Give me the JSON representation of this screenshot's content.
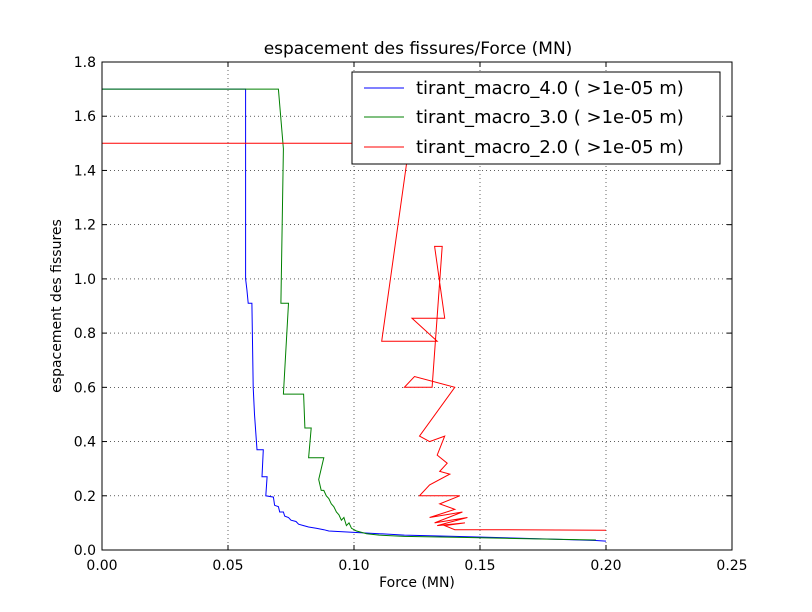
{
  "chart_data": {
    "type": "line",
    "title": "espacement des fissures/Force (MN)",
    "xlabel": "Force (MN)",
    "ylabel": "espacement des fissures",
    "xlim": [
      0.0,
      0.25
    ],
    "ylim": [
      0.0,
      1.8
    ],
    "xticks": [
      "0.00",
      "0.05",
      "0.10",
      "0.15",
      "0.20",
      "0.25"
    ],
    "yticks": [
      "0.0",
      "0.2",
      "0.4",
      "0.6",
      "0.8",
      "1.0",
      "1.2",
      "1.4",
      "1.6",
      "1.8"
    ],
    "grid": true,
    "legend_position": "top-right",
    "series": [
      {
        "name": "tirant_macro_4.0 ( >1e-05 m)",
        "color": "#0000ff",
        "points": [
          [
            0.0,
            1.7
          ],
          [
            0.057,
            1.7
          ],
          [
            0.057,
            1.0
          ],
          [
            0.0575,
            0.96
          ],
          [
            0.058,
            0.91
          ],
          [
            0.0595,
            0.91
          ],
          [
            0.06,
            0.6
          ],
          [
            0.0605,
            0.5
          ],
          [
            0.0615,
            0.37
          ],
          [
            0.064,
            0.37
          ],
          [
            0.0635,
            0.27
          ],
          [
            0.0655,
            0.27
          ],
          [
            0.065,
            0.2
          ],
          [
            0.068,
            0.195
          ],
          [
            0.0685,
            0.165
          ],
          [
            0.07,
            0.16
          ],
          [
            0.0705,
            0.14
          ],
          [
            0.072,
            0.14
          ],
          [
            0.0725,
            0.125
          ],
          [
            0.074,
            0.12
          ],
          [
            0.075,
            0.11
          ],
          [
            0.077,
            0.105
          ],
          [
            0.078,
            0.095
          ],
          [
            0.08,
            0.09
          ],
          [
            0.082,
            0.085
          ],
          [
            0.085,
            0.08
          ],
          [
            0.088,
            0.075
          ],
          [
            0.09,
            0.07
          ],
          [
            0.1,
            0.065
          ],
          [
            0.11,
            0.06
          ],
          [
            0.12,
            0.055
          ],
          [
            0.14,
            0.05
          ],
          [
            0.16,
            0.045
          ],
          [
            0.18,
            0.04
          ],
          [
            0.196,
            0.035
          ],
          [
            0.2,
            0.033
          ]
        ]
      },
      {
        "name": "tirant_macro_3.0 ( >1e-05 m)",
        "color": "#008000",
        "points": [
          [
            0.0,
            1.7
          ],
          [
            0.07,
            1.7
          ],
          [
            0.072,
            1.48
          ],
          [
            0.071,
            0.91
          ],
          [
            0.074,
            0.91
          ],
          [
            0.072,
            0.575
          ],
          [
            0.08,
            0.575
          ],
          [
            0.0805,
            0.45
          ],
          [
            0.083,
            0.45
          ],
          [
            0.082,
            0.34
          ],
          [
            0.088,
            0.34
          ],
          [
            0.086,
            0.26
          ],
          [
            0.087,
            0.22
          ],
          [
            0.088,
            0.22
          ],
          [
            0.089,
            0.2
          ],
          [
            0.09,
            0.19
          ],
          [
            0.091,
            0.17
          ],
          [
            0.092,
            0.16
          ],
          [
            0.093,
            0.14
          ],
          [
            0.094,
            0.13
          ],
          [
            0.095,
            0.11
          ],
          [
            0.096,
            0.12
          ],
          [
            0.097,
            0.09
          ],
          [
            0.098,
            0.1
          ],
          [
            0.099,
            0.08
          ],
          [
            0.101,
            0.07
          ],
          [
            0.103,
            0.065
          ],
          [
            0.105,
            0.06
          ],
          [
            0.11,
            0.055
          ],
          [
            0.12,
            0.05
          ],
          [
            0.14,
            0.047
          ],
          [
            0.16,
            0.043
          ],
          [
            0.18,
            0.04
          ],
          [
            0.196,
            0.037
          ]
        ]
      },
      {
        "name": "tirant_macro_2.0 ( >1e-05 m)",
        "color": "#ff0000",
        "points": [
          [
            0.0,
            1.5
          ],
          [
            0.122,
            1.5
          ],
          [
            0.111,
            0.77
          ],
          [
            0.133,
            0.77
          ],
          [
            0.123,
            0.855
          ],
          [
            0.136,
            0.855
          ],
          [
            0.132,
            1.12
          ],
          [
            0.135,
            1.12
          ],
          [
            0.131,
            0.6
          ],
          [
            0.12,
            0.6
          ],
          [
            0.124,
            0.64
          ],
          [
            0.14,
            0.6
          ],
          [
            0.126,
            0.42
          ],
          [
            0.13,
            0.4
          ],
          [
            0.136,
            0.42
          ],
          [
            0.133,
            0.35
          ],
          [
            0.137,
            0.32
          ],
          [
            0.134,
            0.29
          ],
          [
            0.138,
            0.28
          ],
          [
            0.13,
            0.24
          ],
          [
            0.126,
            0.2
          ],
          [
            0.142,
            0.2
          ],
          [
            0.134,
            0.17
          ],
          [
            0.14,
            0.15
          ],
          [
            0.13,
            0.12
          ],
          [
            0.143,
            0.14
          ],
          [
            0.132,
            0.1
          ],
          [
            0.145,
            0.12
          ],
          [
            0.133,
            0.09
          ],
          [
            0.144,
            0.1
          ],
          [
            0.136,
            0.09
          ],
          [
            0.14,
            0.075
          ],
          [
            0.16,
            0.075
          ],
          [
            0.2,
            0.073
          ]
        ]
      }
    ]
  }
}
